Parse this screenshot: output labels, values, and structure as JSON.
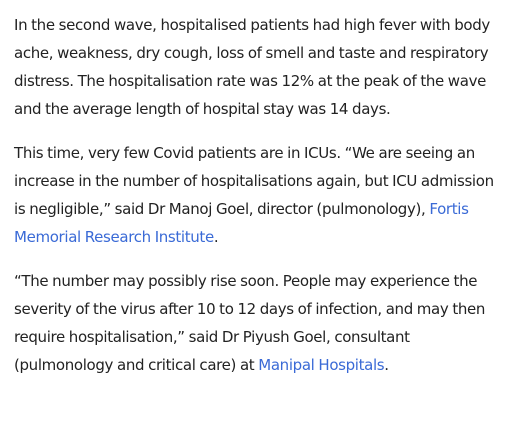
{
  "article": {
    "p1": "In the second wave, hospitalised patients had high fever with body ache, weakness, dry cough, loss of smell and taste and respiratory distress. The hospitalisation rate was 12% at the peak of the wave and the average length of hospital stay was 14 days.",
    "p2_text": "This time, very few Covid patients are in ICUs. “We are seeing an increase in the number of hospitalisations again, but ICU admission is negligible,” said Dr Manoj Goel, director (pulmonology), ",
    "p2_link": "Fortis Memorial Research Institute",
    "p2_end": ".",
    "p3_text": "“The number may possibly rise soon. People may experience the severity of the virus after 10 to 12 days of infection, and may then require hospitalisation,” said Dr Piyush Goel, consultant (pulmonology and critical care) at ",
    "p3_link": "Manipal Hospitals",
    "p3_end": "."
  },
  "colors": {
    "text": "#222222",
    "link": "#3a6ad6"
  }
}
